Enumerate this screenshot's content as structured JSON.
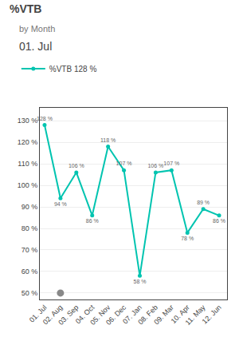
{
  "chart_data": {
    "type": "line",
    "title": "%VTB",
    "subtitle": "by Month",
    "annotation": "01. Jul",
    "categories": [
      "01. Jul",
      "02. Aug",
      "03. Sep",
      "04. Oct",
      "05. Nov",
      "06. Dec",
      "07. Jan",
      "08. Feb",
      "09. Mar",
      "10. Apr",
      "11. May",
      "12. Jun"
    ],
    "series": [
      {
        "name": "%VTB 128 %",
        "type": "line",
        "color": "#00C4B0",
        "marker": "circle",
        "values": [
          128,
          94,
          106,
          86,
          118,
          107,
          58,
          106,
          107,
          78,
          89,
          86
        ],
        "value_labels": [
          "128 %",
          "94 %",
          "106 %",
          "86 %",
          "118 %",
          "107 %",
          "58 %",
          "106 %",
          "107 %",
          "78 %",
          "89 %",
          "86 %"
        ]
      },
      {
        "type": "scatter",
        "color": "#888888",
        "marker": "circle",
        "values": [
          null,
          50,
          null,
          null,
          null,
          null,
          null,
          null,
          null,
          null,
          null,
          null
        ]
      }
    ],
    "ylim": [
      47,
      136
    ],
    "yticks": [
      {
        "value": 50,
        "label": "50 %"
      },
      {
        "value": 60,
        "label": "60 %"
      },
      {
        "value": 70,
        "label": "70 %"
      },
      {
        "value": 80,
        "label": "80 %"
      },
      {
        "value": 90,
        "label": "90 %"
      },
      {
        "value": 100,
        "label": "100 %"
      },
      {
        "value": 110,
        "label": "110 %"
      },
      {
        "value": 120,
        "label": "120 %"
      },
      {
        "value": 130,
        "label": "130 %"
      }
    ],
    "grid": true,
    "data_labels": true,
    "legend": "top"
  }
}
